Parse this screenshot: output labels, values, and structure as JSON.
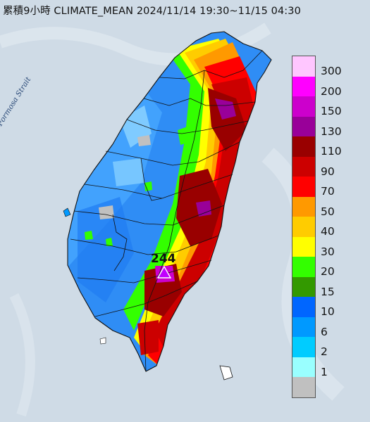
{
  "title": "累積9小時 CLIMATE_MEAN 2024/11/14 19:30~11/15 04:30",
  "strait_label": "Formosa Strait",
  "peak": {
    "value": "244",
    "icon": "triangle-marker-icon"
  },
  "legend": [
    {
      "label": "300",
      "color": "#ffc6ff"
    },
    {
      "label": "200",
      "color": "#ff00ff"
    },
    {
      "label": "150",
      "color": "#cc00cc"
    },
    {
      "label": "130",
      "color": "#990099"
    },
    {
      "label": "110",
      "color": "#990000"
    },
    {
      "label": "90",
      "color": "#cc0000"
    },
    {
      "label": "70",
      "color": "#ff0000"
    },
    {
      "label": "50",
      "color": "#ff9900"
    },
    {
      "label": "40",
      "color": "#ffcc00"
    },
    {
      "label": "30",
      "color": "#ffff00"
    },
    {
      "label": "20",
      "color": "#33ff00"
    },
    {
      "label": "15",
      "color": "#339900"
    },
    {
      "label": "10",
      "color": "#0066ff"
    },
    {
      "label": "6",
      "color": "#0099ff"
    },
    {
      "label": "2",
      "color": "#00ccff"
    },
    {
      "label": "1",
      "color": "#99ffff"
    },
    {
      "label": "",
      "color": "#c0c0c0"
    }
  ]
}
